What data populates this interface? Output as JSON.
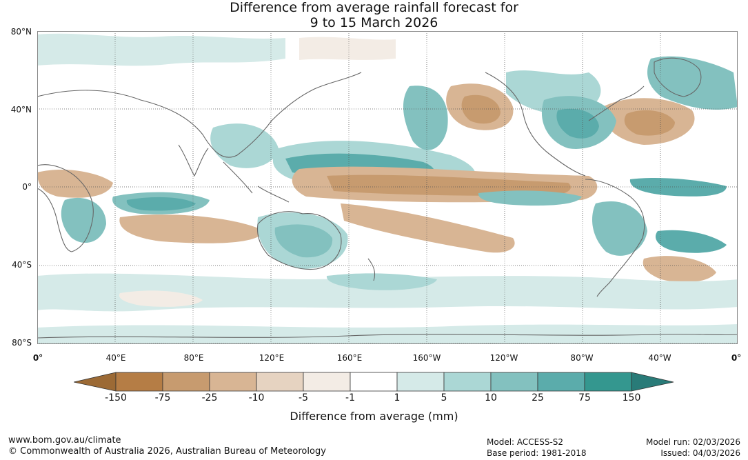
{
  "title": {
    "line1": "Difference from average rainfall forecast for",
    "line2": "9 to 15 March 2026"
  },
  "axes": {
    "lat_labels": [
      "80°N",
      "40°N",
      "0°",
      "40°S",
      "80°S"
    ],
    "lon_labels": [
      "0°",
      "40°E",
      "80°E",
      "120°E",
      "160°E",
      "160°W",
      "120°W",
      "80°W",
      "40°W",
      "0°"
    ]
  },
  "legend": {
    "ticks": [
      "-150",
      "-75",
      "-25",
      "-10",
      "-5",
      "-1",
      "1",
      "5",
      "10",
      "25",
      "75",
      "150"
    ],
    "colors": [
      "#9c6a35",
      "#b57d45",
      "#c79b6f",
      "#d8b594",
      "#e6d3c1",
      "#f3ece5",
      "#ffffff",
      "#d5eae8",
      "#abd7d5",
      "#83c1bf",
      "#5bacab",
      "#34978f",
      "#297b78"
    ],
    "label": "Difference from average (mm)"
  },
  "footer": {
    "url": "www.bom.gov.au/climate",
    "copyright": "© Commonwealth of Australia 2026, Australian Bureau of Meteorology",
    "model": "Model: ACCESS-S2",
    "base_period": "Base period: 1981-2018",
    "model_run": "Model run: 02/03/2026",
    "issued": "Issued: 04/03/2026"
  }
}
